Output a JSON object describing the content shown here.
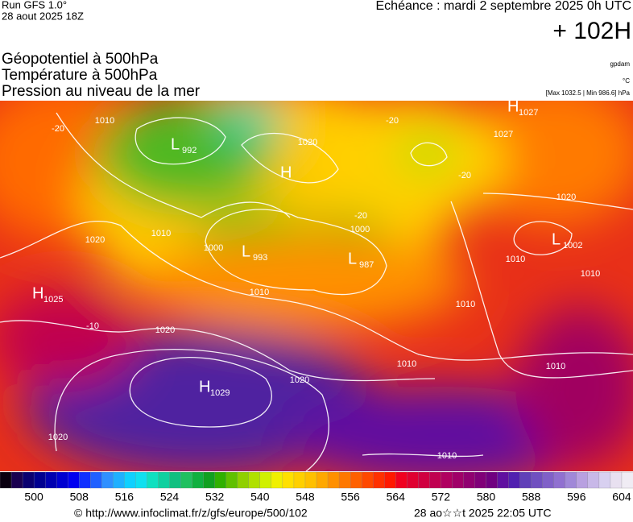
{
  "header": {
    "run": "Run GFS 1.0°",
    "date": "28 aout 2025 18Z",
    "valid": "Echéance : mardi 2 septembre 2025 0h UTC",
    "lead": "+ 102H"
  },
  "legend": {
    "fields": [
      "Géopotentiel à 500hPa",
      "Température à 500hPa",
      "Pression au niveau de la mer"
    ],
    "units": [
      "gpdam",
      "°C",
      "[Max 1032.5 | Min 986.6] hPa"
    ]
  },
  "map": {
    "centers": [
      {
        "kind": "H",
        "value": 1027
      },
      {
        "kind": "L",
        "value": 992
      },
      {
        "kind": "H"
      },
      {
        "kind": "L",
        "value": 993
      },
      {
        "kind": "L",
        "value": 987
      },
      {
        "kind": "L",
        "value": 1002
      },
      {
        "kind": "H",
        "value": 1025
      },
      {
        "kind": "H",
        "value": 1029
      }
    ],
    "isobar_labels": [
      "1010",
      "-20",
      "1020",
      "1010",
      "1000",
      "1010",
      "1020",
      "1020",
      "1020",
      "1010",
      "1010",
      "1010",
      "1010",
      "1010",
      "1020",
      "1010",
      "1000",
      "-20",
      "-20",
      "-20",
      "1020",
      "-10",
      "1027"
    ]
  },
  "colorbar": {
    "ticks": [
      500,
      508,
      516,
      524,
      532,
      540,
      548,
      556,
      564,
      572,
      580,
      588,
      596,
      604
    ],
    "lim": [
      494,
      606
    ],
    "colors": [
      "#0a0010",
      "#1a0050",
      "#0a0070",
      "#000090",
      "#0000b0",
      "#0000d0",
      "#0000f0",
      "#1030ff",
      "#2060ff",
      "#3090ff",
      "#20b0ff",
      "#10d0ff",
      "#10e0f0",
      "#10e0c0",
      "#10d0a0",
      "#10c080",
      "#20c060",
      "#10b040",
      "#10a020",
      "#30b000",
      "#60c000",
      "#90d000",
      "#b0e000",
      "#d0f000",
      "#f0f000",
      "#ffe000",
      "#ffd000",
      "#ffc000",
      "#ffa800",
      "#ff9000",
      "#ff7800",
      "#ff6000",
      "#ff4800",
      "#ff3000",
      "#ff1800",
      "#f00020",
      "#e00030",
      "#d00040",
      "#c00050",
      "#b00060",
      "#a00068",
      "#900070",
      "#800078",
      "#700080",
      "#6010a0",
      "#5020b0",
      "#6040b8",
      "#7050c0",
      "#8060c8",
      "#9070d0",
      "#a088d8",
      "#b8a0e0",
      "#c8b8e8",
      "#d8d0f0",
      "#e8e0f0",
      "#f0ecf4"
    ]
  },
  "footer": {
    "source": "© http://www.infoclimat.fr/z/gfs/europe/500/102",
    "generated": "28 ao☆☆t 2025 22:05 UTC"
  }
}
